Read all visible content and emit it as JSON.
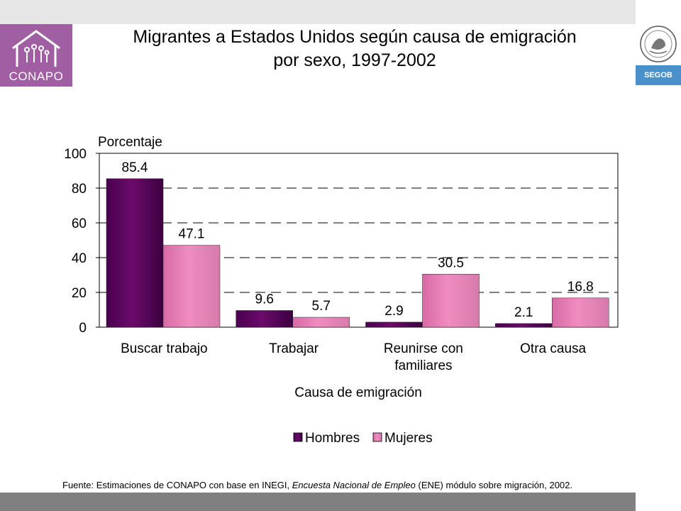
{
  "header": {
    "title_line1": "Migrantes a Estados Unidos según causa de emigración",
    "title_line2": "por sexo, 1997-2002",
    "logo_left_text": "CONAPO",
    "logo_right_text": "SEGOB"
  },
  "colors": {
    "hombres": "#6b0b6b",
    "mujeres": "#f08cc0",
    "conapo_bg": "#a05fa3",
    "segob_bg": "#4a90c9"
  },
  "chart_data": {
    "type": "bar",
    "title": "",
    "ylabel": "Porcentaje",
    "xlabel": "Causa de emigración",
    "ylim": [
      0,
      100
    ],
    "yticks": [
      0,
      20,
      40,
      60,
      80,
      100
    ],
    "categories": [
      [
        "Buscar trabajo"
      ],
      [
        "Trabajar"
      ],
      [
        "Reunirse con",
        "familiares"
      ],
      [
        "Otra causa"
      ]
    ],
    "series": [
      {
        "name": "Hombres",
        "values": [
          85.4,
          9.6,
          2.9,
          2.1
        ],
        "labels": [
          "85.4",
          "9.6",
          "2.9",
          "2.1"
        ]
      },
      {
        "name": "Mujeres",
        "values": [
          47.1,
          5.7,
          30.5,
          16.8
        ],
        "labels": [
          "47.1",
          "5.7",
          "30.5",
          "16.8"
        ]
      }
    ],
    "grid": "dashed",
    "legend_position": "bottom"
  },
  "footer": {
    "source_prefix": "Fuente: Estimaciones de CONAPO con base en INEGI, ",
    "source_italic": "Encuesta Nacional de Empleo",
    "source_suffix": " (ENE) módulo sobre migración, 2002."
  }
}
